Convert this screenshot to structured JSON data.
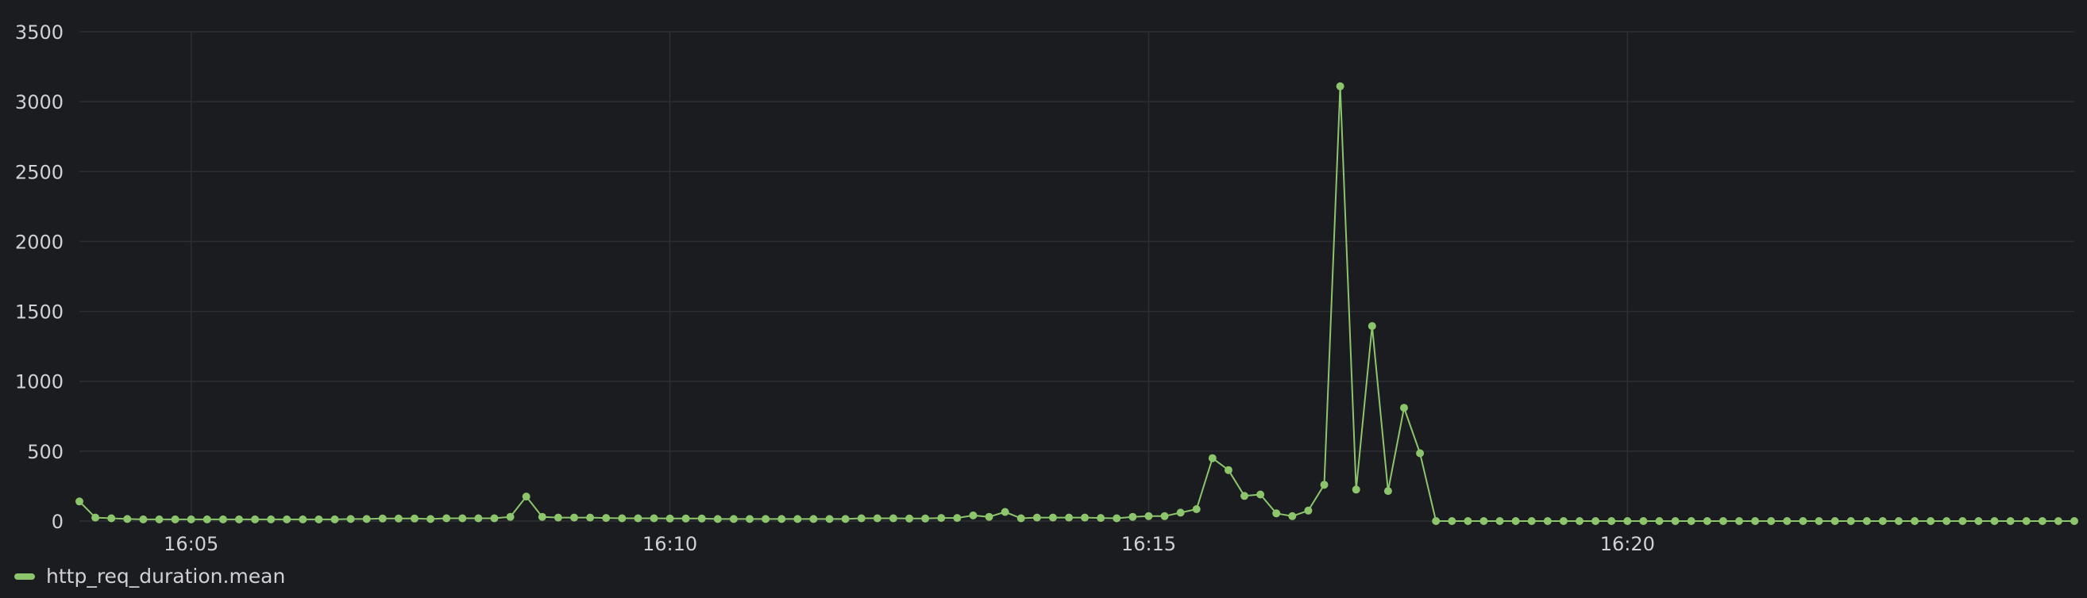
{
  "chart_data": {
    "type": "line",
    "title": "",
    "xlabel": "",
    "ylabel": "",
    "ylim": [
      0,
      3500
    ],
    "yticks": [
      0,
      500,
      1000,
      1500,
      2000,
      2500,
      3000,
      3500
    ],
    "xlim": [
      "16:03:50",
      "16:24:40"
    ],
    "xticks": [
      "16:05",
      "16:10",
      "16:15",
      "16:20"
    ],
    "grid": true,
    "legend_position": "bottom-left",
    "interval_seconds": 10,
    "series": [
      {
        "name": "http_req_duration.mean",
        "color": "#8cc56c",
        "start_time": "16:03:50",
        "values": [
          140,
          25,
          20,
          15,
          12,
          12,
          12,
          12,
          12,
          12,
          12,
          12,
          12,
          12,
          12,
          12,
          12,
          15,
          15,
          18,
          18,
          18,
          15,
          20,
          20,
          20,
          20,
          30,
          175,
          30,
          25,
          25,
          25,
          22,
          20,
          20,
          20,
          18,
          18,
          18,
          15,
          15,
          15,
          15,
          15,
          15,
          15,
          15,
          15,
          20,
          20,
          20,
          18,
          18,
          22,
          22,
          40,
          30,
          65,
          20,
          25,
          25,
          25,
          25,
          22,
          20,
          30,
          35,
          35,
          60,
          85,
          450,
          365,
          180,
          190,
          55,
          35,
          75,
          260,
          3110,
          225,
          1395,
          215,
          810,
          485,
          0,
          0,
          0,
          0,
          0,
          0,
          0,
          0,
          0,
          0,
          0,
          0,
          0,
          0,
          0,
          0,
          0,
          0,
          0,
          0,
          0,
          0,
          0,
          0,
          0,
          0,
          0,
          0,
          0,
          0,
          0,
          0,
          0,
          0,
          0,
          0,
          0,
          0,
          0,
          0,
          0
        ]
      }
    ]
  }
}
